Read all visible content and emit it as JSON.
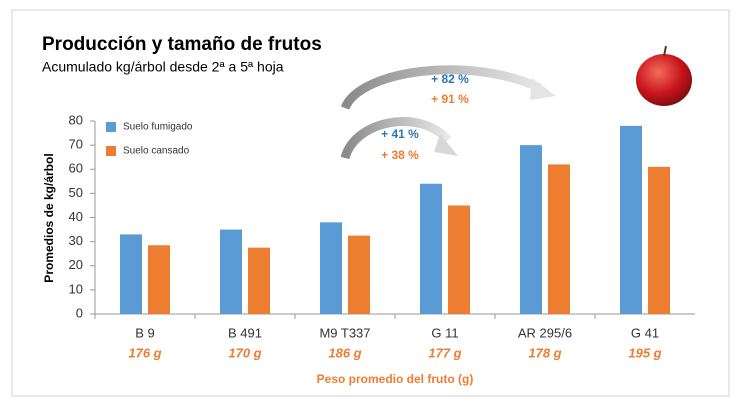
{
  "chart_data": {
    "type": "bar",
    "title": "Producción y tamaño de frutos",
    "subtitle": "Acumulado kg/árbol desde 2ª a 5ª hoja",
    "y_label": "Promedios de kg/árbol",
    "x_label": "Peso promedio del fruto (g)",
    "categories": [
      "B 9",
      "B 491",
      "M9 T337",
      "G 11",
      "AR 295/6",
      "G 41"
    ],
    "fruit_weights": [
      "176 g",
      "170 g",
      "186 g",
      "177 g",
      "178 g",
      "195 g"
    ],
    "series": [
      {
        "name": "Suelo fumigado",
        "color": "#5b9bd5",
        "values": [
          33,
          35,
          38,
          54,
          70,
          78
        ]
      },
      {
        "name": "Suelo cansado",
        "color": "#ed7d31",
        "values": [
          28.5,
          27.5,
          32.5,
          45,
          62,
          61
        ]
      }
    ],
    "annotations": [
      {
        "text": "+ 82 %",
        "color": "#2e75b6"
      },
      {
        "text": "+ 91 %",
        "color": "#ed7d31"
      },
      {
        "text": "+ 41 %",
        "color": "#2e75b6"
      },
      {
        "text": "+ 38 %",
        "color": "#ed7d31"
      }
    ],
    "ylim": [
      0,
      80
    ],
    "yticks": [
      0,
      10,
      20,
      30,
      40,
      50,
      60,
      70,
      80
    ],
    "grid": false,
    "legend": "upper left"
  }
}
